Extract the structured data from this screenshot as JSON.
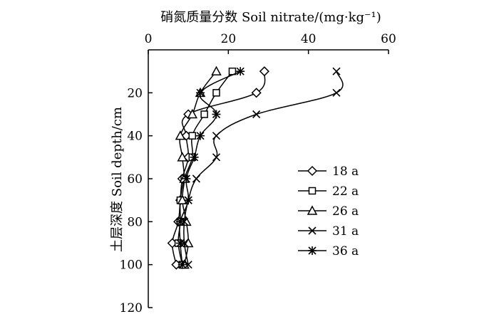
{
  "chart_data": {
    "type": "line",
    "x_title": "硝氮质量分数 Soil nitrate/(mg·kg⁻¹)",
    "y_title": "土层深度 Soil depth/cm",
    "xlim": [
      0,
      60
    ],
    "ylim": [
      0,
      120
    ],
    "y_inverted": true,
    "x_axis_position": "top",
    "x_ticks": [
      0,
      20,
      40,
      60
    ],
    "y_ticks": [
      20,
      40,
      60,
      80,
      100,
      120
    ],
    "grid": false,
    "legend_position": "right-middle",
    "series": [
      {
        "name": "18 a",
        "marker": "diamond",
        "points": [
          [
            29,
            10
          ],
          [
            27,
            20
          ],
          [
            10,
            30
          ],
          [
            9.5,
            40
          ],
          [
            10,
            50
          ],
          [
            8.5,
            60
          ],
          [
            8,
            70
          ],
          [
            7.5,
            80
          ],
          [
            6,
            90
          ],
          [
            7,
            100
          ]
        ]
      },
      {
        "name": "22 a",
        "marker": "square",
        "points": [
          [
            21,
            10
          ],
          [
            17,
            20
          ],
          [
            14,
            30
          ],
          [
            11,
            40
          ],
          [
            11,
            50
          ],
          [
            9,
            60
          ],
          [
            8,
            70
          ],
          [
            8,
            80
          ],
          [
            7.5,
            90
          ],
          [
            8.5,
            100
          ]
        ]
      },
      {
        "name": "26 a",
        "marker": "triangle",
        "points": [
          [
            17,
            10
          ],
          [
            13,
            20
          ],
          [
            11,
            30
          ],
          [
            8,
            40
          ],
          [
            8.5,
            50
          ],
          [
            9,
            60
          ],
          [
            8.5,
            70
          ],
          [
            9.5,
            80
          ],
          [
            10,
            90
          ],
          [
            9,
            100
          ]
        ]
      },
      {
        "name": "31 a",
        "marker": "x",
        "points": [
          [
            47,
            10
          ],
          [
            47,
            20
          ],
          [
            27,
            30
          ],
          [
            17,
            40
          ],
          [
            17,
            50
          ],
          [
            12,
            60
          ],
          [
            10,
            70
          ],
          [
            9,
            80
          ],
          [
            9,
            90
          ],
          [
            10,
            100
          ]
        ]
      },
      {
        "name": "36 a",
        "marker": "asterisk",
        "points": [
          [
            23,
            10
          ],
          [
            13,
            20
          ],
          [
            17,
            30
          ],
          [
            13,
            40
          ],
          [
            11.5,
            50
          ],
          [
            9.5,
            60
          ],
          [
            10,
            70
          ],
          [
            8,
            80
          ],
          [
            8,
            90
          ],
          [
            8.5,
            100
          ]
        ]
      }
    ]
  }
}
